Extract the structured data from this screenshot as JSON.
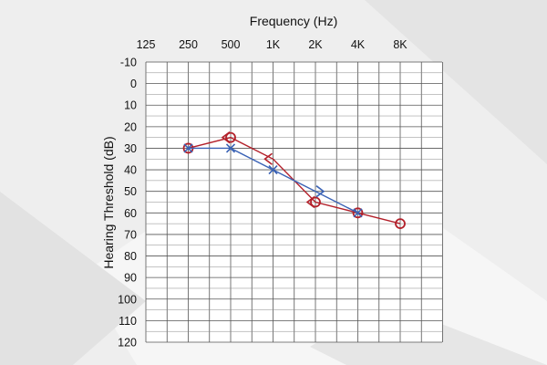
{
  "chart_data": {
    "type": "line",
    "title": "",
    "xlabel": "Frequency (Hz)",
    "ylabel": "Hearing Threshold (dB)",
    "x_ticks": [
      "125",
      "250",
      "500",
      "1K",
      "2K",
      "4K",
      "8K"
    ],
    "y_ticks": [
      "-10",
      "0",
      "10",
      "20",
      "30",
      "40",
      "50",
      "60",
      "70",
      "80",
      "90",
      "100",
      "110",
      "120"
    ],
    "ylim": [
      -10,
      120
    ],
    "y_inverted": true,
    "x_axis_position": "top",
    "grid": true,
    "legend": "none",
    "series": [
      {
        "color": "#b3202a",
        "markers": [
          "circle",
          "left-bracket",
          "circle",
          "left-bracket",
          "circle",
          "left-bracket",
          "circle",
          "circle"
        ],
        "points": [
          {
            "x": "250",
            "y": 30
          },
          {
            "x": "500",
            "y": 25
          },
          {
            "x": "500",
            "y": 25
          },
          {
            "x": "1K",
            "y": 35
          },
          {
            "x": "2K",
            "y": 55
          },
          {
            "x": "2K",
            "y": 55
          },
          {
            "x": "4K",
            "y": 60
          },
          {
            "x": "8K",
            "y": 65
          }
        ]
      },
      {
        "color": "#3a62b5",
        "markers": [
          "x",
          "x",
          "x",
          "right-bracket",
          "x"
        ],
        "points": [
          {
            "x": "250",
            "y": 30
          },
          {
            "x": "500",
            "y": 30
          },
          {
            "x": "1K",
            "y": 40
          },
          {
            "x": "2K",
            "y": 50
          },
          {
            "x": "4K",
            "y": 60
          }
        ]
      }
    ]
  }
}
